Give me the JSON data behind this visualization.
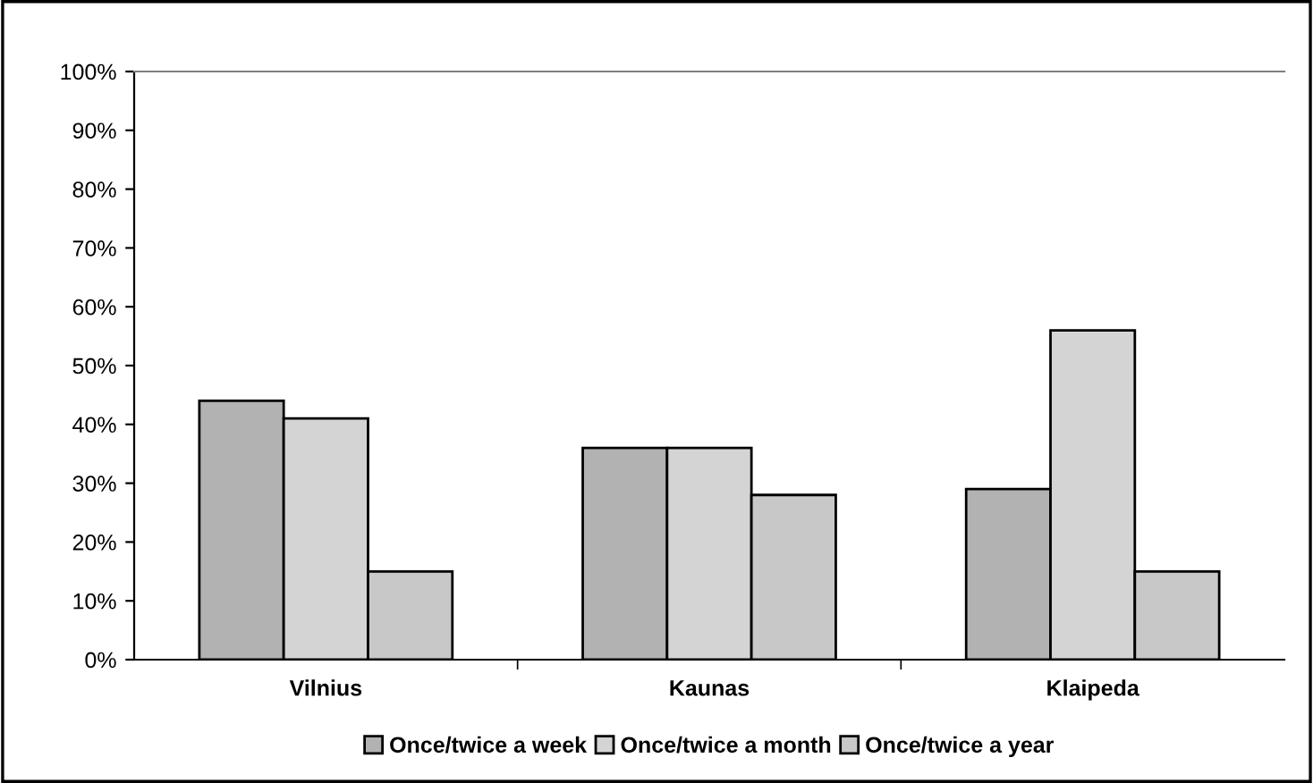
{
  "chart_data": {
    "type": "bar",
    "categories": [
      "Vilnius",
      "Kaunas",
      "Klaipeda"
    ],
    "series": [
      {
        "name": "Once/twice a week",
        "color": "#b2b2b2",
        "values": [
          44,
          36,
          29
        ]
      },
      {
        "name": "Once/twice a month",
        "color": "#d4d4d4",
        "values": [
          41,
          36,
          56
        ]
      },
      {
        "name": "Once/twice a year",
        "color": "#c8c8c8",
        "values": [
          15,
          28,
          15
        ]
      }
    ],
    "ylim": [
      0,
      100
    ],
    "yticks": [
      {
        "value": 0,
        "label": "0%"
      },
      {
        "value": 10,
        "label": "10%"
      },
      {
        "value": 20,
        "label": "20%"
      },
      {
        "value": 30,
        "label": "30%"
      },
      {
        "value": 40,
        "label": "40%"
      },
      {
        "value": 50,
        "label": "50%"
      },
      {
        "value": 60,
        "label": "60%"
      },
      {
        "value": 70,
        "label": "70%"
      },
      {
        "value": 80,
        "label": "80%"
      },
      {
        "value": 90,
        "label": "90%"
      },
      {
        "value": 100,
        "label": "100%"
      }
    ],
    "grid": false,
    "legend": "bottom"
  }
}
